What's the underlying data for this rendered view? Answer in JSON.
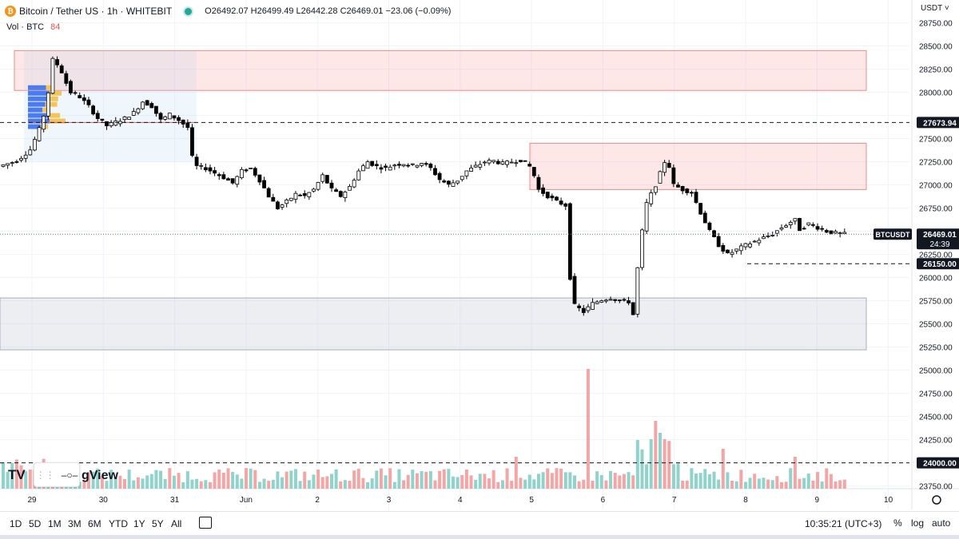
{
  "header": {
    "title": "Bitcoin / Tether US · 1h · WHITEBIT",
    "ohlc": "O26492.07 H26499.49 L26442.28 C26469.01 −23.06 (−0.09%)",
    "vol_label": "Vol · BTC",
    "vol_value": "84",
    "currency": "USDT ˅"
  },
  "watermark": {
    "part1": "TV",
    "part2": "gView"
  },
  "toolbar": {
    "timeframes": [
      "1D",
      "5D",
      "1M",
      "3M",
      "6M",
      "YTD",
      "1Y",
      "5Y",
      "All"
    ],
    "clock": "10:35:21 (UTC+3)",
    "percent": "%",
    "log": "log",
    "auto": "auto"
  },
  "colors": {
    "up": "#26a69a",
    "down": "#ef5350",
    "candle_up_body": "#ffffff",
    "candle_down_body": "#000000",
    "zone_red": "#f7c4c4",
    "zone_gray": "#e0e3eb",
    "vol_up": "#8fd3cb",
    "vol_down": "#f4a6a6"
  },
  "chart_data": {
    "type": "candlestick",
    "symbol_tag": "BTCUSDT",
    "last_price": 26469.01,
    "last_price_label": "26469.01",
    "countdown": "24:39",
    "y_ticks": [
      28750,
      28500,
      28250,
      28000,
      27750,
      27500,
      27250,
      27000,
      26750,
      26500,
      26250,
      26000,
      25750,
      25500,
      25250,
      25000,
      24750,
      24500,
      24250,
      24000,
      23750
    ],
    "y_tick_labels": [
      "28750.00",
      "28500.00",
      "28250.00",
      "28000.00",
      "27750.00",
      "27500.00",
      "27250.00",
      "27000.00",
      "26750.00",
      "26500.00",
      "26250.00",
      "26000.00",
      "25750.00",
      "25500.00",
      "25250.00",
      "25000.00",
      "24750.00",
      "24500.00",
      "24250.00",
      "24000.00",
      "23750.00"
    ],
    "x_ticks": [
      "29",
      "30",
      "31",
      "Jun",
      "2",
      "3",
      "4",
      "5",
      "6",
      "7",
      "8",
      "9",
      "10"
    ],
    "levels": [
      {
        "price": 27673.94,
        "label": "27673.94"
      },
      {
        "price": 26150.0,
        "label": "26150.00"
      },
      {
        "price": 24000.0,
        "label": "24000.00"
      }
    ],
    "zones": [
      {
        "from_x": "28 23:00",
        "to_x": "10 ~",
        "low": 28020,
        "high": 28450,
        "kind": "red"
      },
      {
        "from_x": "5 00:00",
        "to_x": "10 ~",
        "low": 26950,
        "high": 27450,
        "kind": "red"
      },
      {
        "from_x": "28 ~",
        "to_x": "10 ~",
        "low": 25220,
        "high": 25780,
        "kind": "gray"
      }
    ],
    "path": [
      [
        0,
        27200
      ],
      [
        4,
        27260
      ],
      [
        7,
        27380
      ],
      [
        9,
        27600
      ],
      [
        10,
        27750
      ],
      [
        11,
        28000
      ],
      [
        12,
        28350
      ],
      [
        13,
        28300
      ],
      [
        14,
        28220
      ],
      [
        15,
        28100
      ],
      [
        16,
        28000
      ],
      [
        18,
        27950
      ],
      [
        20,
        27850
      ],
      [
        22,
        27720
      ],
      [
        24,
        27640
      ],
      [
        26,
        27680
      ],
      [
        28,
        27720
      ],
      [
        30,
        27780
      ],
      [
        32,
        27900
      ],
      [
        34,
        27850
      ],
      [
        36,
        27700
      ],
      [
        38,
        27760
      ],
      [
        40,
        27700
      ],
      [
        42,
        27620
      ],
      [
        43,
        27300
      ],
      [
        44,
        27200
      ],
      [
        46,
        27180
      ],
      [
        48,
        27130
      ],
      [
        50,
        27080
      ],
      [
        52,
        27020
      ],
      [
        54,
        27150
      ],
      [
        56,
        27180
      ],
      [
        58,
        27050
      ],
      [
        60,
        26880
      ],
      [
        62,
        26750
      ],
      [
        64,
        26820
      ],
      [
        66,
        26900
      ],
      [
        68,
        26880
      ],
      [
        70,
        26950
      ],
      [
        72,
        27100
      ],
      [
        74,
        26950
      ],
      [
        76,
        26880
      ],
      [
        78,
        26980
      ],
      [
        80,
        27150
      ],
      [
        82,
        27250
      ],
      [
        84,
        27200
      ],
      [
        86,
        27180
      ],
      [
        88,
        27220
      ],
      [
        90,
        27230
      ],
      [
        92,
        27210
      ],
      [
        94,
        27240
      ],
      [
        96,
        27180
      ],
      [
        98,
        27060
      ],
      [
        100,
        27000
      ],
      [
        102,
        27050
      ],
      [
        104,
        27150
      ],
      [
        106,
        27200
      ],
      [
        108,
        27250
      ],
      [
        110,
        27260
      ],
      [
        112,
        27230
      ],
      [
        114,
        27250
      ],
      [
        116,
        27270
      ],
      [
        118,
        27200
      ],
      [
        119,
        27100
      ],
      [
        120,
        26950
      ],
      [
        122,
        26880
      ],
      [
        124,
        26820
      ],
      [
        126,
        26780
      ],
      [
        127,
        26000
      ],
      [
        128,
        25700
      ],
      [
        130,
        25630
      ],
      [
        132,
        25720
      ],
      [
        134,
        25760
      ],
      [
        136,
        25780
      ],
      [
        138,
        25750
      ],
      [
        140,
        25740
      ],
      [
        141,
        25600
      ],
      [
        142,
        26100
      ],
      [
        143,
        26500
      ],
      [
        144,
        26800
      ],
      [
        146,
        27000
      ],
      [
        148,
        27250
      ],
      [
        149,
        27200
      ],
      [
        150,
        27000
      ],
      [
        152,
        26950
      ],
      [
        154,
        26920
      ],
      [
        156,
        26700
      ],
      [
        158,
        26500
      ],
      [
        160,
        26350
      ],
      [
        162,
        26250
      ],
      [
        164,
        26300
      ],
      [
        166,
        26350
      ],
      [
        168,
        26390
      ],
      [
        170,
        26430
      ],
      [
        172,
        26470
      ],
      [
        174,
        26540
      ],
      [
        176,
        26600
      ],
      [
        177,
        26620
      ],
      [
        178,
        26520
      ],
      [
        180,
        26580
      ],
      [
        182,
        26540
      ],
      [
        184,
        26500
      ],
      [
        186,
        26480
      ],
      [
        188,
        26469
      ]
    ],
    "volume_max": 1
  }
}
